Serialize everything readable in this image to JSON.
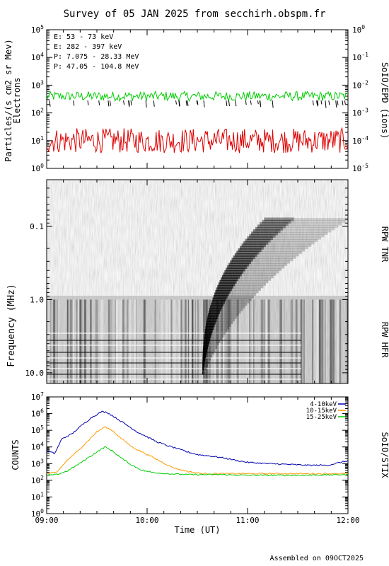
{
  "title": "Survey of 05 JAN 2025 from secchirh.obspm.fr",
  "footer": "Assembled on 09OCT2025",
  "x_axis": {
    "label": "Time (UT)",
    "ticks": [
      "09:00",
      "10:00",
      "11:00",
      "12:00"
    ],
    "range_hours": [
      9,
      12
    ]
  },
  "chart_data": [
    {
      "type": "line",
      "panel": "SoIO/EPD (ions)",
      "ylabel_left": "Particles/(s cm2 sr Mev)",
      "ylabel_left2": "Electrons",
      "ylabel_right": "SoIO/EPD (ions)",
      "y_scale": "log",
      "ylim": [
        1,
        100000
      ],
      "ylim_right": [
        1e-05,
        1
      ],
      "yticks_left": [
        "10^0",
        "10^1",
        "10^2",
        "10^3",
        "10^4",
        "10^5"
      ],
      "yticks_right": [
        "10^-5",
        "10^-4",
        "10^-3",
        "10^-2",
        "10^-1",
        "10^0"
      ],
      "legend": [
        {
          "label": "E: 53 - 73 keV",
          "color": "#00cc00"
        },
        {
          "label": "E: 282 - 397 keV",
          "color": "#dd0000"
        },
        {
          "label": "P: 7.075 - 28.33 MeV",
          "color": "#000000"
        },
        {
          "label": "P: 47.05 - 104.8 MeV",
          "color": "#0000cc"
        }
      ],
      "series": [
        {
          "name": "E: 53 - 73 keV",
          "color": "#00cc00",
          "typical_value": 400
        },
        {
          "name": "E: 282 - 397 keV",
          "color": "#dd0000",
          "typical_value": 10
        }
      ]
    },
    {
      "type": "heatmap",
      "panel": "RPW",
      "ylabel": "Frequency (MHz)",
      "y_scale": "log",
      "y_inverted": true,
      "ylim": [
        0.023,
        14
      ],
      "yticks": [
        "0.1",
        "1.0",
        "10.0"
      ],
      "bands": [
        {
          "name": "RPW TNR",
          "freq_range_mhz": [
            0.023,
            1.0
          ]
        },
        {
          "name": "RPW HFR",
          "freq_range_mhz": [
            1.0,
            14
          ]
        }
      ],
      "burst": {
        "start_freq_mhz": 10,
        "start_time": "10:33",
        "end_freq_mhz": 0.08,
        "end_time": "11:55"
      }
    },
    {
      "type": "line",
      "panel": "SoIO/STIX",
      "ylabel": "COUNTS",
      "ylabel_right": "SoIO/STIX",
      "y_scale": "log",
      "ylim": [
        1,
        10000000
      ],
      "yticks": [
        "10^0",
        "10^1",
        "10^2",
        "10^3",
        "10^4",
        "10^5",
        "10^6",
        "10^7"
      ],
      "legend_position": "top-right",
      "series": [
        {
          "name": "4-10keV",
          "color": "#0000aa",
          "x_hours": [
            9.0,
            9.08,
            9.15,
            9.25,
            9.35,
            9.45,
            9.55,
            9.6,
            9.7,
            9.8,
            9.9,
            10.0,
            10.1,
            10.2,
            10.3,
            10.4,
            10.5,
            10.6,
            10.7,
            10.8,
            10.9,
            11.0,
            11.2,
            11.4,
            11.6,
            11.8,
            12.0
          ],
          "values": [
            6000,
            4000,
            30000,
            60000,
            200000,
            600000,
            1300000,
            1200000,
            500000,
            200000,
            80000,
            40000,
            20000,
            12000,
            8000,
            5000,
            3500,
            3000,
            2500,
            2000,
            1500,
            1200,
            1000,
            900,
            800,
            800,
            1500
          ]
        },
        {
          "name": "10-15keV",
          "color": "#ff9900",
          "x_hours": [
            9.0,
            9.1,
            9.2,
            9.3,
            9.4,
            9.5,
            9.58,
            9.65,
            9.75,
            9.85,
            9.95,
            10.05,
            10.15,
            10.25,
            10.35,
            10.45,
            10.55,
            10.7,
            11.0,
            11.5,
            12.0
          ],
          "values": [
            250,
            300,
            1500,
            5000,
            20000,
            80000,
            160000,
            100000,
            30000,
            10000,
            5000,
            2500,
            1200,
            600,
            400,
            300,
            250,
            250,
            250,
            250,
            250
          ]
        },
        {
          "name": "15-25keV",
          "color": "#00cc00",
          "x_hours": [
            9.0,
            9.1,
            9.2,
            9.3,
            9.4,
            9.5,
            9.58,
            9.65,
            9.75,
            9.85,
            9.95,
            10.05,
            10.2,
            10.4,
            10.7,
            11.0,
            11.5,
            12.0
          ],
          "values": [
            200,
            220,
            350,
            800,
            2000,
            5000,
            10000,
            6000,
            2000,
            800,
            400,
            300,
            250,
            220,
            220,
            200,
            200,
            220
          ]
        }
      ]
    }
  ]
}
